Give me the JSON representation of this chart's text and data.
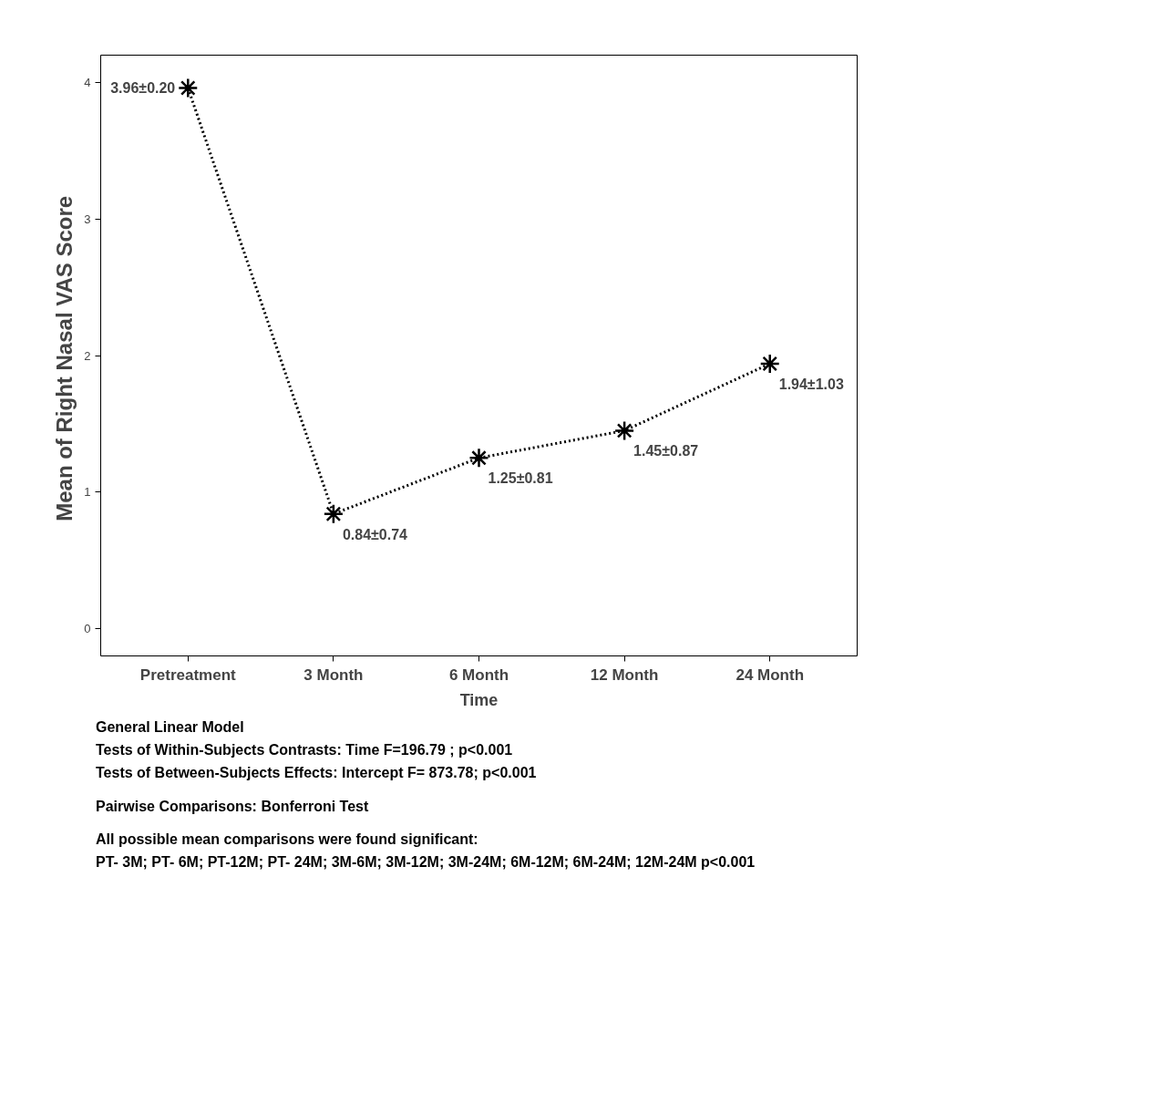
{
  "chart_data": {
    "type": "line",
    "xlabel": "Time",
    "ylabel": "Mean of Right  Nasal VAS Score",
    "categories": [
      "Pretreatment",
      "3 Month",
      "6 Month",
      "12 Month",
      "24 Month"
    ],
    "series": [
      {
        "color": "#000000",
        "values": [
          3.96,
          0.84,
          1.25,
          1.45,
          1.94
        ],
        "value_labels": [
          "3.96±0.20",
          "0.84±0.74",
          "1.25±0.81",
          "1.45±0.87",
          "1.94±1.03"
        ]
      }
    ],
    "ylim": [
      -0.2,
      4.2
    ],
    "yticks": [
      0,
      1,
      2,
      3,
      4
    ],
    "grid": false,
    "marker": "cross",
    "line_style": "dotted",
    "annotations": [
      "General Linear Model",
      "Tests of Within-Subjects Contrasts: Time   F=196.79  ; p<0.001",
      "Tests of Between-Subjects Effects: Intercept  F= 873.78; p<0.001",
      "Pairwise Comparisons: Bonferroni Test",
      "All possible mean comparisons were found significant:",
      "PT- 3M; PT- 6M; PT-12M; PT- 24M; 3M-6M; 3M-12M; 3M-24M; 6M-12M; 6M-24M; 12M-24M p<0.001"
    ]
  }
}
